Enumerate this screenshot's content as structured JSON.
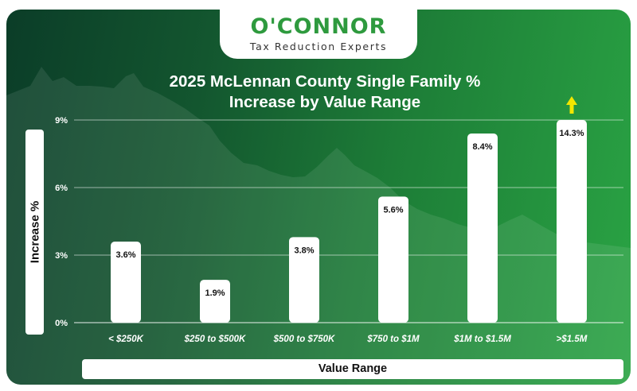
{
  "brand": {
    "logo_text": "O'CONNOR",
    "tagline": "Tax Reduction Experts",
    "colors": {
      "logo_green": "#2e9a3e",
      "bar": "#ffffff",
      "arrow": "#f2e600"
    }
  },
  "chart_data": {
    "type": "bar",
    "title_lines": [
      "2025 McLennan County Single Family %",
      "Increase by Value Range"
    ],
    "xlabel": "Value Range",
    "ylabel": "Increase %",
    "categories": [
      "< $250K",
      "$250 to $500K",
      "$500 to $750K",
      "$750 to $1M",
      "$1M to $1.5M",
      ">$1.5M"
    ],
    "values": [
      3.6,
      1.9,
      3.8,
      5.6,
      8.4,
      14.3
    ],
    "value_labels": [
      "3.6%",
      "1.9%",
      "3.8%",
      "5.6%",
      "8.4%",
      "14.3%"
    ],
    "y_ticks": [
      "0%",
      "3%",
      "6%",
      "9%"
    ],
    "y_tick_values": [
      0,
      3,
      6,
      9
    ],
    "ylim": [
      0,
      9
    ],
    "clipped_indicator": "up-arrow-on-last-bar",
    "grid": true,
    "legend": "none"
  }
}
